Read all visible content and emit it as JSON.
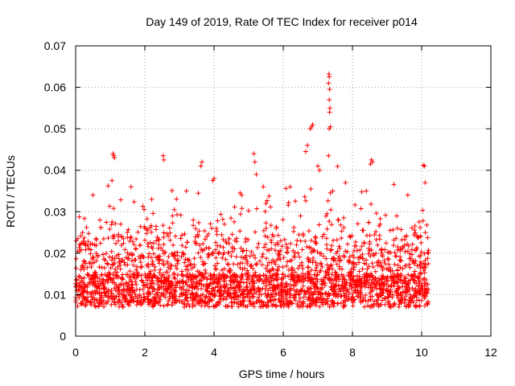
{
  "chart_data": {
    "type": "scatter",
    "title": "Day 149 of 2019, Rate Of TEC Index for receiver p014",
    "xlabel": "GPS time / hours",
    "ylabel": "ROTI / TECUs",
    "xlim": [
      0,
      12
    ],
    "ylim": [
      0,
      0.07
    ],
    "x_ticks": [
      "0",
      "2",
      "4",
      "6",
      "8",
      "10",
      "12"
    ],
    "y_ticks": [
      "0",
      "0.01",
      "0.02",
      "0.03",
      "0.04",
      "0.05",
      "0.06",
      "0.07"
    ],
    "grid": true,
    "marker": "+",
    "color": "#ff0000",
    "series": [
      {
        "name": "ROTI",
        "note_points": "sampled representative subset of dense scatter",
        "points": [
          [
            1.08,
            0.044
          ],
          [
            1.1,
            0.0435
          ],
          [
            1.12,
            0.043
          ],
          [
            1.05,
            0.0375
          ],
          [
            2.53,
            0.0435
          ],
          [
            2.55,
            0.0425
          ],
          [
            3.65,
            0.042
          ],
          [
            3.62,
            0.041
          ],
          [
            5.15,
            0.044
          ],
          [
            5.18,
            0.042
          ],
          [
            5.22,
            0.039
          ],
          [
            4.0,
            0.038
          ],
          [
            6.85,
            0.051
          ],
          [
            6.82,
            0.0505
          ],
          [
            6.78,
            0.05
          ],
          [
            6.7,
            0.046
          ],
          [
            6.65,
            0.0445
          ],
          [
            7.32,
            0.0632
          ],
          [
            7.33,
            0.0625
          ],
          [
            7.31,
            0.061
          ],
          [
            7.34,
            0.0595
          ],
          [
            7.33,
            0.057
          ],
          [
            7.35,
            0.055
          ],
          [
            7.34,
            0.054
          ],
          [
            7.36,
            0.0505
          ],
          [
            7.33,
            0.05
          ],
          [
            7.31,
            0.0435
          ],
          [
            7.0,
            0.041
          ],
          [
            7.05,
            0.04
          ],
          [
            8.55,
            0.0425
          ],
          [
            8.58,
            0.042
          ],
          [
            8.52,
            0.0415
          ],
          [
            10.05,
            0.0412
          ],
          [
            10.08,
            0.041
          ],
          [
            10.1,
            0.037
          ],
          [
            0.5,
            0.034
          ],
          [
            1.6,
            0.036
          ],
          [
            2.2,
            0.033
          ],
          [
            3.2,
            0.035
          ],
          [
            4.8,
            0.034
          ],
          [
            5.5,
            0.032
          ],
          [
            6.2,
            0.036
          ],
          [
            7.8,
            0.037
          ],
          [
            8.4,
            0.035
          ],
          [
            9.6,
            0.034
          ],
          [
            0.2,
            0.025
          ],
          [
            0.7,
            0.028
          ],
          [
            1.3,
            0.027
          ],
          [
            2.8,
            0.029
          ],
          [
            3.4,
            0.028
          ],
          [
            4.3,
            0.027
          ],
          [
            5.8,
            0.026
          ],
          [
            6.5,
            0.029
          ],
          [
            7.6,
            0.028
          ],
          [
            8.8,
            0.027
          ],
          [
            9.3,
            0.026
          ]
        ]
      }
    ]
  }
}
